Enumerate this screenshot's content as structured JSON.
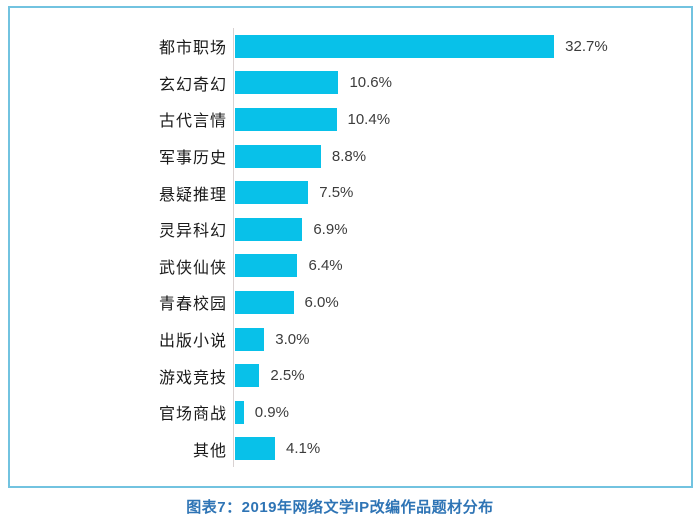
{
  "chart": {
    "caption": "图表7：2019年网络文学IP改编作品题材分布",
    "caption_color": "#2e74b5",
    "bar_color": "#08c1e9",
    "border_color": "#72c3e0",
    "axis_color": "#d9d2d2",
    "value_text_color": "#3c3c3c",
    "category_text_color": "#1a1a1a"
  },
  "chart_data": {
    "type": "bar",
    "orientation": "horizontal",
    "title": "图表7：2019年网络文学IP改编作品题材分布",
    "categories": [
      "都市职场",
      "玄幻奇幻",
      "古代言情",
      "军事历史",
      "悬疑推理",
      "灵异科幻",
      "武侠仙侠",
      "青春校园",
      "出版小说",
      "游戏竞技",
      "官场商战",
      "其他"
    ],
    "values": [
      32.7,
      10.6,
      10.4,
      8.8,
      7.5,
      6.9,
      6.4,
      6.0,
      3.0,
      2.5,
      0.9,
      4.1
    ],
    "value_labels": [
      "32.7%",
      "10.6%",
      "10.4%",
      "8.8%",
      "7.5%",
      "6.9%",
      "6.4%",
      "6.0%",
      "3.0%",
      "2.5%",
      "0.9%",
      "4.1%"
    ],
    "xlabel": "",
    "ylabel": "",
    "xlim": [
      0,
      35
    ],
    "grid": false,
    "legend": false,
    "value_label_position": "right-of-bar"
  }
}
